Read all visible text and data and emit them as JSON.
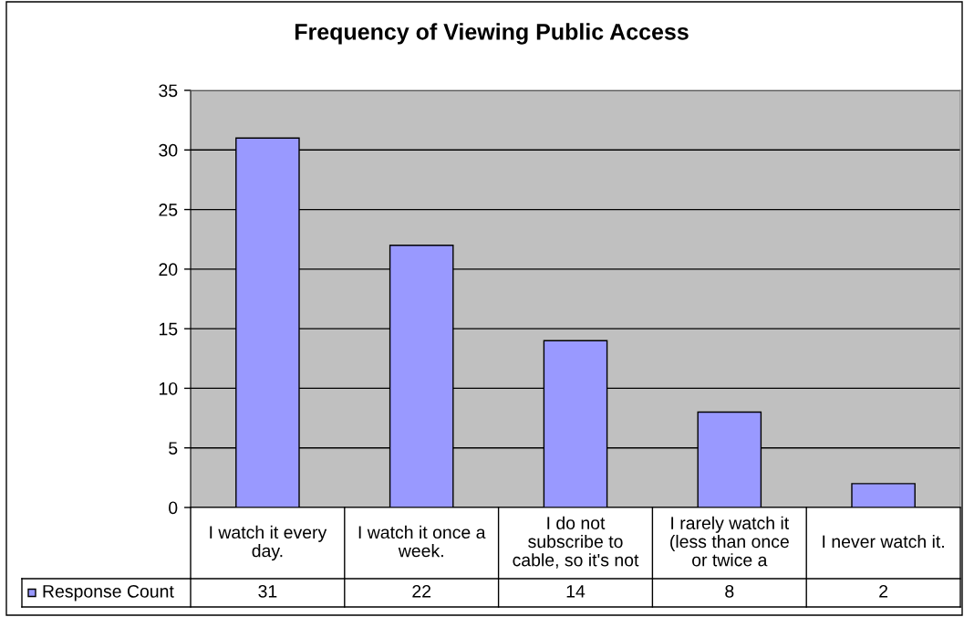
{
  "chart_data": {
    "type": "bar",
    "title": "Frequency of Viewing Public Access",
    "categories": [
      "I watch it every day.",
      "I watch it once a week.",
      "I do not subscribe to cable, so it's not",
      "I rarely watch it (less than once or twice a",
      "I never watch it."
    ],
    "series": [
      {
        "name": "Response Count",
        "color": "#9999ff",
        "values": [
          31,
          22,
          14,
          8,
          2
        ]
      }
    ],
    "ylim": [
      0,
      35
    ],
    "yticks": [
      0,
      5,
      10,
      15,
      20,
      25,
      30,
      35
    ],
    "grid": "y",
    "legend": "bottom left",
    "data_labels": true
  }
}
